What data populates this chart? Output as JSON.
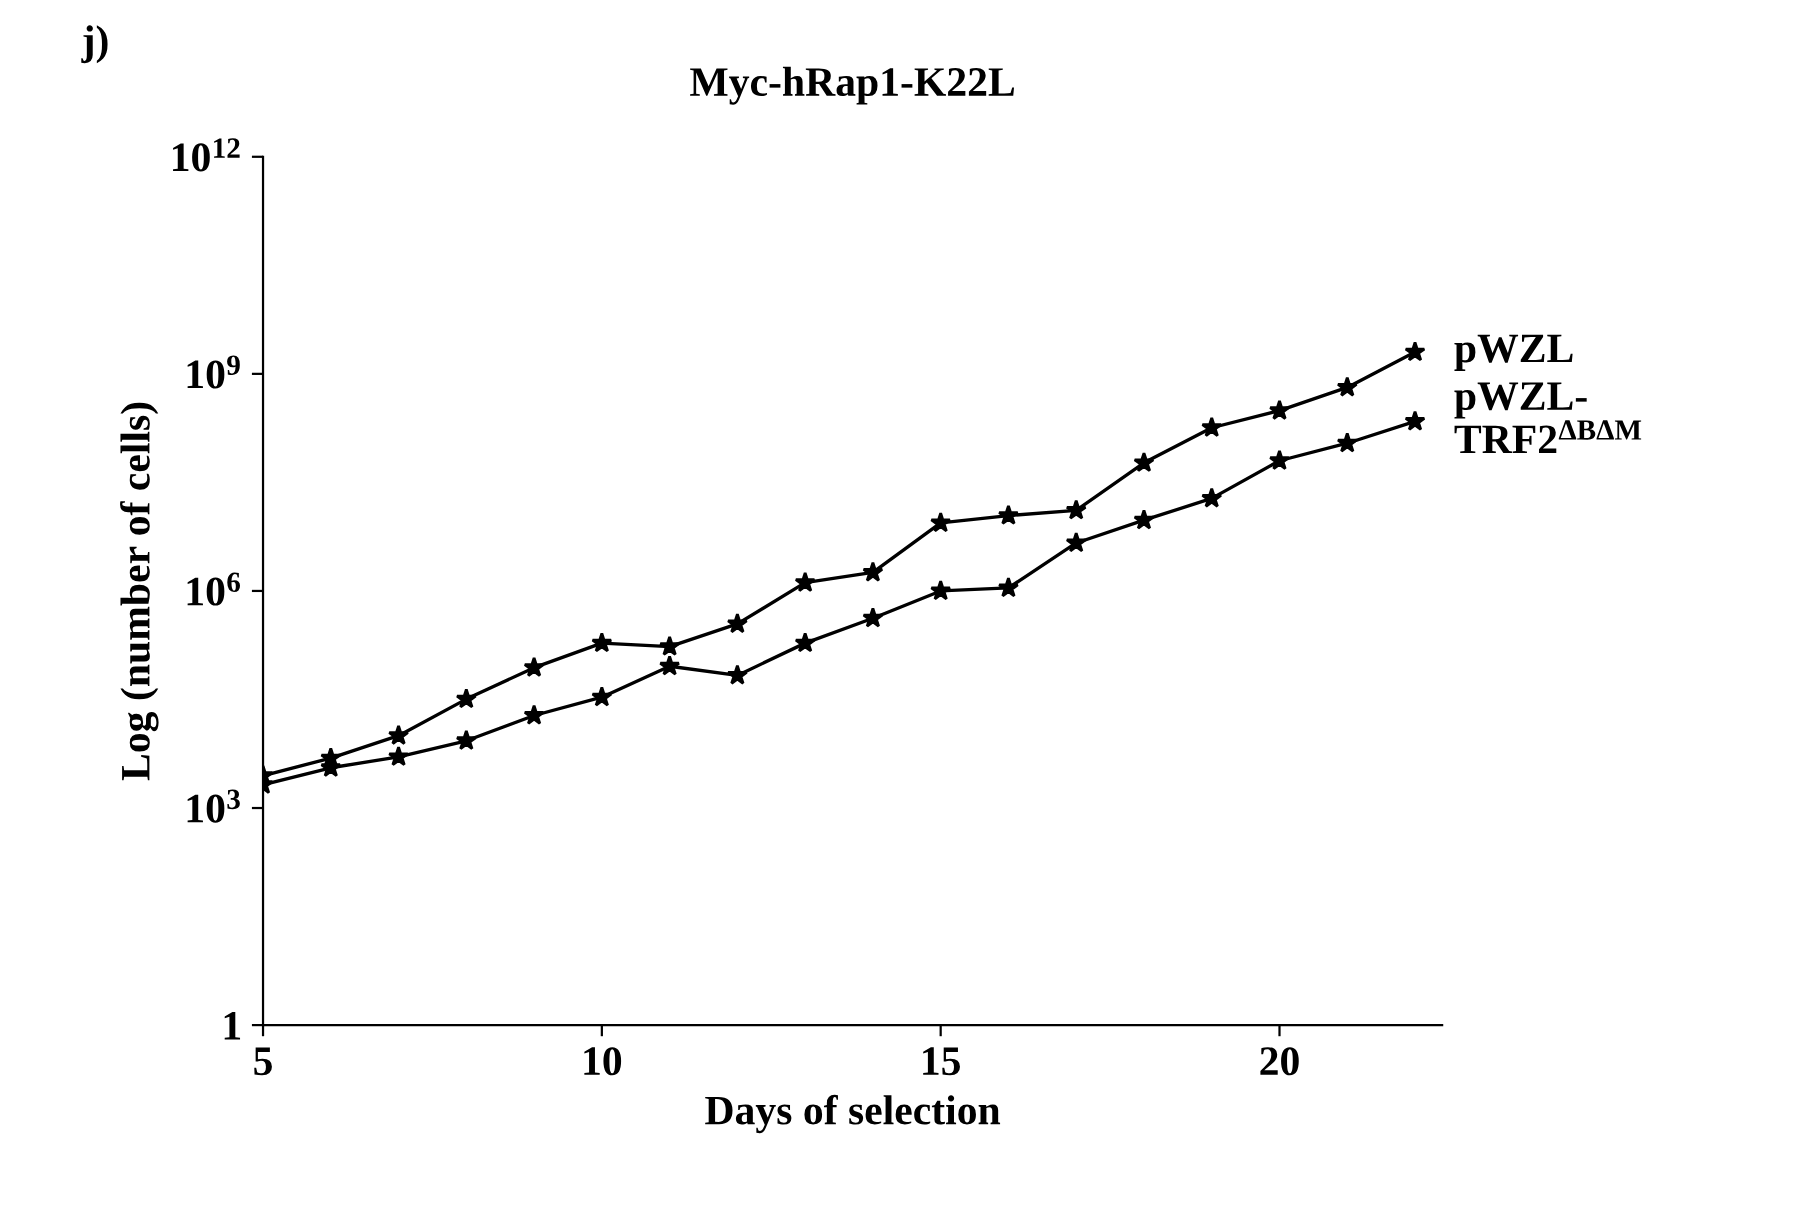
{
  "chart_data": {
    "type": "line",
    "title": "Myc-hRap1-K22L",
    "xlabel": "Days of selection",
    "ylabel": "Log (number of cells)",
    "annotations": [
      "j)"
    ],
    "x": [
      5,
      6,
      7,
      8,
      9,
      10,
      11,
      12,
      13,
      14,
      15,
      16,
      17,
      18,
      19,
      20,
      21,
      22
    ],
    "series": [
      {
        "name": "pWZL",
        "color": "#000000",
        "values": [
          2800,
          4900,
          10000,
          32000,
          87000,
          190000,
          170000,
          350000,
          1300000,
          1800000,
          8700000,
          11000000,
          13000000,
          59000000,
          180000000,
          310000000,
          650000000,
          2000000000
        ]
      },
      {
        "name": "pWZL-\nTRF2$^{ΔBΔM}$",
        "color": "#000000",
        "values": [
          2100,
          3600,
          5100,
          8500,
          19000,
          34000,
          91000,
          68000,
          190000,
          420000,
          1000000,
          1100000,
          4600000,
          9500000,
          19000000,
          63000000,
          110000000,
          220000000
        ]
      }
    ],
    "log": "y",
    "xlim": [
      5,
      22.4
    ],
    "xticks": [
      5,
      10,
      15,
      20
    ],
    "ylim": [
      1,
      1000000000000
    ],
    "yticks": [
      {
        "value": 1,
        "label": "1"
      },
      {
        "value": 1000,
        "label": "10$^{3}$"
      },
      {
        "value": 1000000,
        "label": "10$^{6}$"
      },
      {
        "value": 1000000000,
        "label": "10$^{9}$"
      },
      {
        "value": 1000000000000,
        "label": "10$^{12}$"
      }
    ],
    "marker": "star",
    "line_style": "solid",
    "grid": false,
    "legend": false
  }
}
